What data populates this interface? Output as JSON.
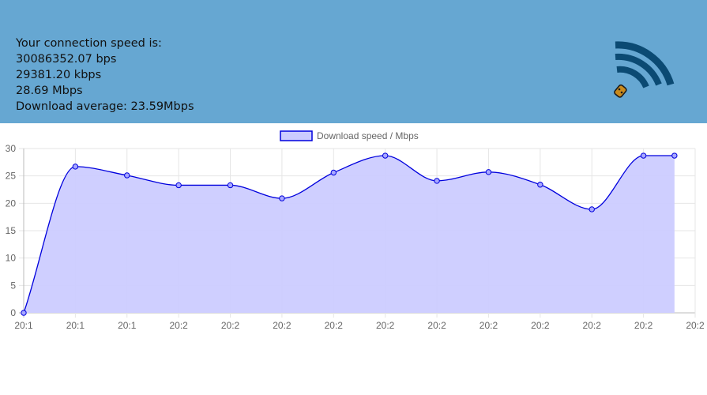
{
  "header": {
    "background": "#66a7d2",
    "lines": [
      "Your connection speed is:",
      "30086352.07 bps",
      "29381.20 kbps",
      "28.69 Mbps",
      "Download average: 23.59Mbps"
    ],
    "icon": "wifi-signal-icon"
  },
  "chart_data": {
    "type": "area",
    "title": "",
    "xlabel": "",
    "ylabel": "",
    "legend_position": "top",
    "grid": true,
    "ylim": [
      0,
      30
    ],
    "yticks": [
      0,
      5,
      10,
      15,
      20,
      25,
      30
    ],
    "categories": [
      "20:1",
      "20:1",
      "20:1",
      "20:2",
      "20:2",
      "20:2",
      "20:2",
      "20:2",
      "20:2",
      "20:2",
      "20:2",
      "20:2",
      "20:2",
      "20:2"
    ],
    "series": [
      {
        "name": "Download speed / Mbps",
        "color": "#0000dd",
        "fill": "#ccccff",
        "values": [
          0,
          26.7,
          25.1,
          23.3,
          23.3,
          20.9,
          25.6,
          28.7,
          24.1,
          25.7,
          23.4,
          18.9,
          28.7,
          28.7
        ]
      }
    ],
    "point_x_positions": [
      0,
      1,
      2,
      3,
      4,
      5,
      6,
      7,
      8,
      9,
      10,
      11,
      12,
      12.6
    ]
  }
}
